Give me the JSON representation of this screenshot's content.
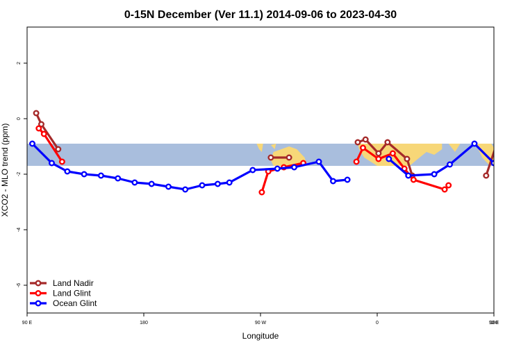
{
  "chart_data": {
    "type": "line",
    "title": "0-15N December (Ver 11.1)   2014-09-06 to 2023-04-30",
    "xlabel": "Longitude",
    "ylabel": "XCO2 - MLO trend (ppm)",
    "xlim": [
      90,
      450
    ],
    "ylim": [
      -7,
      3.3
    ],
    "x_ticks": [
      {
        "value": 90,
        "label": "90 E"
      },
      {
        "value": 180,
        "label": "180"
      },
      {
        "value": 270,
        "label": "90 W"
      },
      {
        "value": 360,
        "label": "0"
      },
      {
        "value": 450,
        "label": "90 E"
      },
      {
        "value": 540,
        "label": "180"
      }
    ],
    "y_ticks": [
      {
        "value": 2,
        "label": "2"
      },
      {
        "value": 0,
        "label": "0"
      },
      {
        "value": -2,
        "label": "-2"
      },
      {
        "value": -4,
        "label": "-4"
      },
      {
        "value": -6,
        "label": "-6"
      }
    ],
    "band": {
      "y_min": -1.7,
      "y_max": -0.9,
      "color": "#a9bedd"
    },
    "land_color": "#f7d778",
    "land_regions": [
      [
        [
          267,
          -0.9
        ],
        [
          272,
          -0.9
        ],
        [
          271,
          -1.2
        ],
        [
          269,
          -1.1
        ]
      ],
      [
        [
          280,
          -1.2
        ],
        [
          292,
          -1.0
        ],
        [
          298,
          -1.1
        ],
        [
          304,
          -1.4
        ],
        [
          306,
          -1.7
        ],
        [
          280,
          -1.7
        ],
        [
          278,
          -1.5
        ]
      ],
      [
        [
          278,
          -0.95
        ],
        [
          282,
          -0.9
        ],
        [
          281,
          -1.1
        ]
      ],
      [
        [
          345,
          -0.9
        ],
        [
          410,
          -0.9
        ],
        [
          410,
          -1.1
        ],
        [
          404,
          -1.3
        ],
        [
          398,
          -1.2
        ],
        [
          390,
          -1.5
        ],
        [
          385,
          -1.7
        ],
        [
          360,
          -1.7
        ],
        [
          350,
          -1.4
        ],
        [
          346,
          -1.1
        ]
      ],
      [
        [
          415,
          -0.9
        ],
        [
          424,
          -0.9
        ],
        [
          420,
          -1.2
        ]
      ],
      [
        [
          435,
          -0.9
        ],
        [
          448,
          -0.9
        ],
        [
          452,
          -1.2
        ],
        [
          450,
          -1.5
        ],
        [
          447,
          -1.7
        ],
        [
          441,
          -1.4
        ],
        [
          438,
          -1.1
        ]
      ],
      [
        [
          466,
          -0.9
        ],
        [
          475,
          -0.9
        ],
        [
          470,
          -1.3
        ],
        [
          466,
          -1.2
        ]
      ],
      [
        [
          483,
          -0.95
        ],
        [
          490,
          -0.9
        ],
        [
          488,
          -1.1
        ]
      ]
    ],
    "series": [
      {
        "name": "Land Nadir",
        "color": "#a52a2a",
        "segments": [
          [
            [
              97,
              0.2
            ],
            [
              101,
              -0.2
            ],
            [
              114,
              -1.1
            ]
          ],
          [
            [
              278,
              -1.4
            ],
            [
              292,
              -1.4
            ]
          ],
          [
            [
              345,
              -0.85
            ],
            [
              351,
              -0.75
            ],
            [
              361,
              -1.25
            ],
            [
              368,
              -0.85
            ],
            [
              383,
              -1.45
            ],
            [
              387,
              -2.05
            ]
          ],
          [
            [
              444,
              -2.05
            ],
            [
              460,
              0.2
            ],
            [
              466,
              -0.2
            ],
            [
              474,
              -1.1
            ]
          ]
        ]
      },
      {
        "name": "Land Glint",
        "color": "#ff0000",
        "segments": [
          [
            [
              99,
              -0.35
            ],
            [
              103,
              -0.55
            ],
            [
              117,
              -1.55
            ]
          ],
          [
            [
              271,
              -2.65
            ],
            [
              276,
              -1.9
            ],
            [
              288,
              -1.75
            ],
            [
              303,
              -1.6
            ]
          ],
          [
            [
              344,
              -1.55
            ],
            [
              349,
              -1.05
            ],
            [
              361,
              -1.45
            ],
            [
              372,
              -1.25
            ],
            [
              381,
              -1.8
            ],
            [
              388,
              -2.2
            ],
            [
              412,
              -2.55
            ],
            [
              415,
              -2.4
            ]
          ],
          [
            [
              460,
              -0.35
            ],
            [
              466,
              -0.55
            ],
            [
              480,
              -1.55
            ]
          ]
        ]
      },
      {
        "name": "Ocean Glint",
        "color": "#0000ff",
        "segments": [
          [
            [
              94,
              -0.9
            ],
            [
              109,
              -1.6
            ],
            [
              121,
              -1.9
            ],
            [
              134,
              -2.0
            ],
            [
              147,
              -2.05
            ],
            [
              160,
              -2.15
            ],
            [
              173,
              -2.3
            ],
            [
              186,
              -2.35
            ],
            [
              199,
              -2.45
            ],
            [
              212,
              -2.55
            ],
            [
              225,
              -2.4
            ],
            [
              237,
              -2.35
            ],
            [
              246,
              -2.3
            ],
            [
              264,
              -1.85
            ],
            [
              283,
              -1.8
            ],
            [
              296,
              -1.75
            ],
            [
              315,
              -1.55
            ],
            [
              326,
              -2.25
            ],
            [
              337,
              -2.2
            ]
          ],
          [
            [
              369,
              -1.45
            ],
            [
              384,
              -2.05
            ],
            [
              404,
              -2.0
            ],
            [
              416,
              -1.65
            ],
            [
              435,
              -0.9
            ],
            [
              450,
              -1.6
            ],
            [
              462,
              -1.9
            ],
            [
              475,
              -1.95
            ],
            [
              488,
              -2.0
            ],
            [
              501,
              -2.15
            ]
          ]
        ]
      }
    ],
    "legend": {
      "position": "bottom-left"
    }
  }
}
